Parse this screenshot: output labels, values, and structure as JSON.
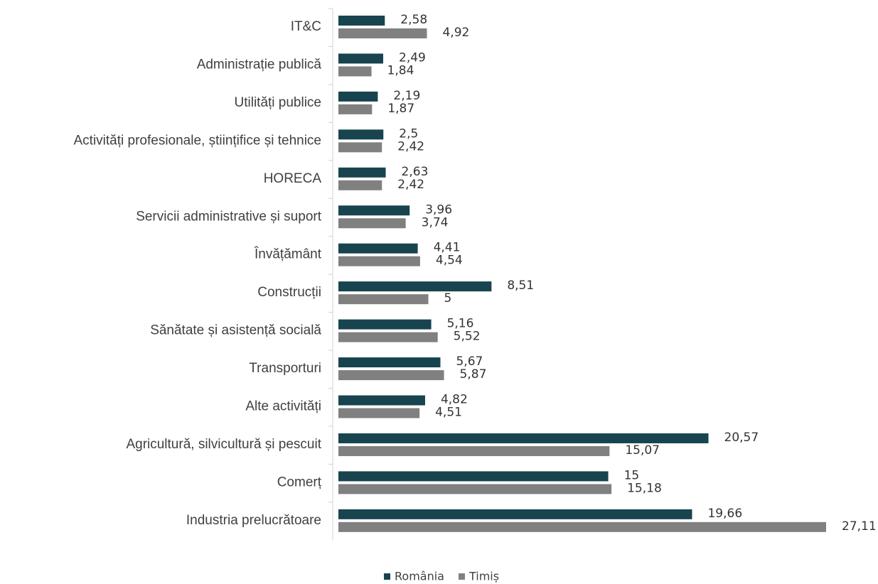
{
  "chart_data": {
    "type": "hbar",
    "categories": [
      "IT&C",
      "Administrație publică",
      "Utilități publice",
      "Activități profesionale, științifice și tehnice",
      "HORECA",
      "Servicii administrative și suport",
      "Învățământ",
      "Construcții",
      "Sănătate și asistență socială",
      "Transporturi",
      "Alte activități",
      "Agricultură, silvicultură și pescuit",
      "Comerț",
      "Industria prelucrătoare"
    ],
    "series": [
      {
        "name": "România",
        "color": "#17444f",
        "values": [
          2.58,
          2.49,
          2.19,
          2.5,
          2.63,
          3.96,
          4.41,
          8.51,
          5.16,
          5.67,
          4.82,
          20.57,
          15,
          19.66
        ],
        "value_labels": [
          "2,58",
          "2,49",
          "2,19",
          "2,5",
          "2,63",
          "3,96",
          "4,41",
          "8,51",
          "5,16",
          "5,67",
          "4,82",
          "20,57",
          "15",
          "19,66"
        ]
      },
      {
        "name": "Timiș",
        "color": "#808080",
        "values": [
          4.92,
          1.84,
          1.87,
          2.42,
          2.42,
          3.74,
          4.54,
          5,
          5.52,
          5.87,
          4.51,
          15.07,
          15.18,
          27.11
        ],
        "value_labels": [
          "4,92",
          "1,84",
          "1,87",
          "2,42",
          "2,42",
          "3,74",
          "4,54",
          "5",
          "5,52",
          "5,87",
          "4,51",
          "15,07",
          "15,18",
          "27,11"
        ]
      }
    ],
    "legend": "bottom"
  }
}
